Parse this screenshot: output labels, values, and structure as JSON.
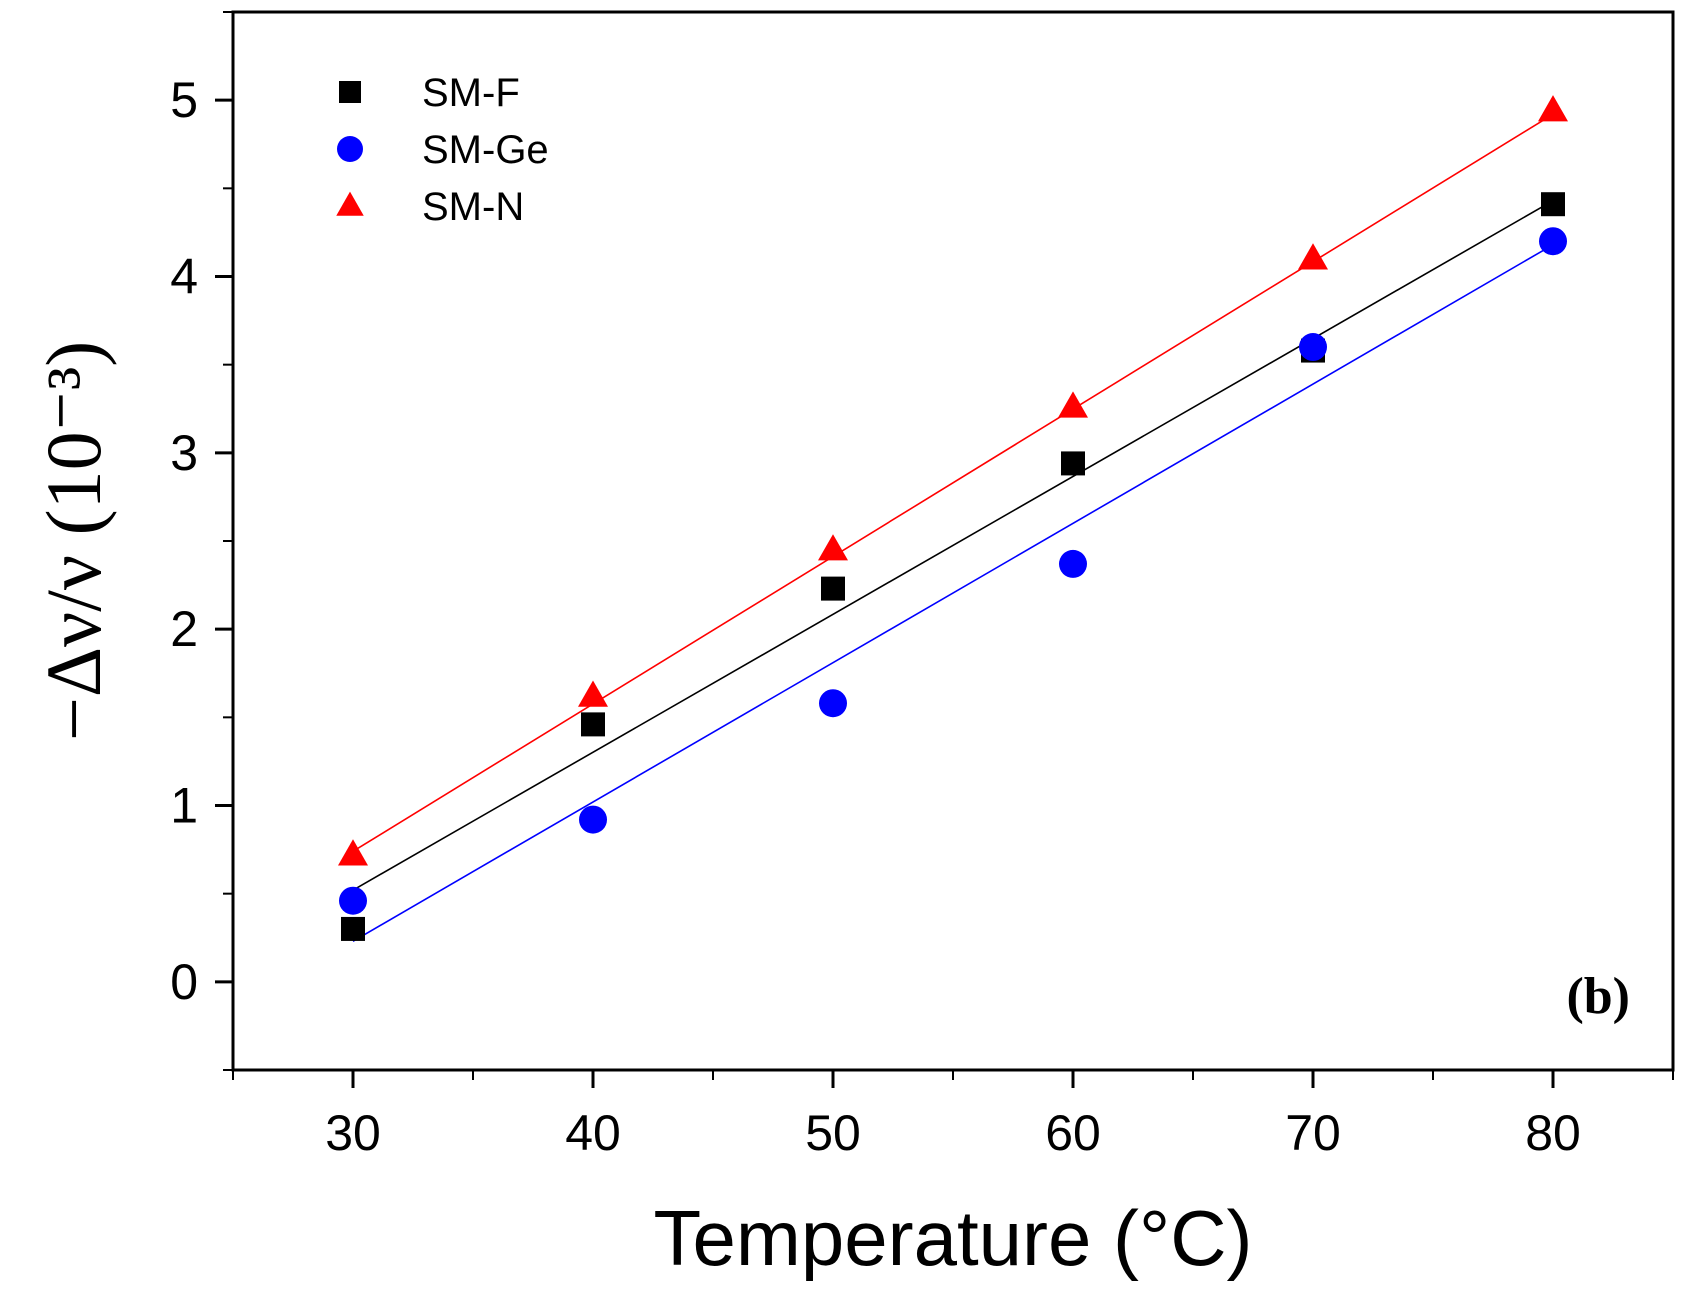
{
  "chart_data": {
    "type": "scatter",
    "panel_label": "(b)",
    "xlabel": "Temperature (°C)",
    "ylabel": "−Δν/ν (10⁻³)",
    "xlim": [
      25,
      85
    ],
    "ylim": [
      -0.5,
      5.5
    ],
    "x_ticks": [
      30,
      40,
      50,
      60,
      70,
      80
    ],
    "x_minor_ticks": [
      25,
      35,
      45,
      55,
      65,
      75,
      85
    ],
    "y_ticks": [
      0,
      1,
      2,
      3,
      4,
      5
    ],
    "grid": false,
    "legend_position": "top-left",
    "series": [
      {
        "name": "SM-F",
        "marker": "square",
        "color": "#000000",
        "x": [
          30,
          40,
          50,
          60,
          70,
          80
        ],
        "y": [
          0.3,
          1.46,
          2.23,
          2.94,
          3.58,
          4.41
        ],
        "fit": {
          "x": [
            30,
            80
          ],
          "y": [
            0.52,
            4.43
          ]
        }
      },
      {
        "name": "SM-Ge",
        "marker": "circle",
        "color": "#0000ff",
        "x": [
          30,
          40,
          50,
          60,
          70,
          80
        ],
        "y": [
          0.46,
          0.92,
          1.58,
          2.37,
          3.6,
          4.2
        ],
        "fit": {
          "x": [
            30,
            80
          ],
          "y": [
            0.23,
            4.18
          ]
        }
      },
      {
        "name": "SM-N",
        "marker": "triangle",
        "color": "#ff0000",
        "x": [
          30,
          40,
          50,
          60,
          70,
          80
        ],
        "y": [
          0.72,
          1.62,
          2.45,
          3.26,
          4.1,
          4.94
        ],
        "fit": {
          "x": [
            30,
            80
          ],
          "y": [
            0.74,
            4.92
          ]
        }
      }
    ]
  }
}
